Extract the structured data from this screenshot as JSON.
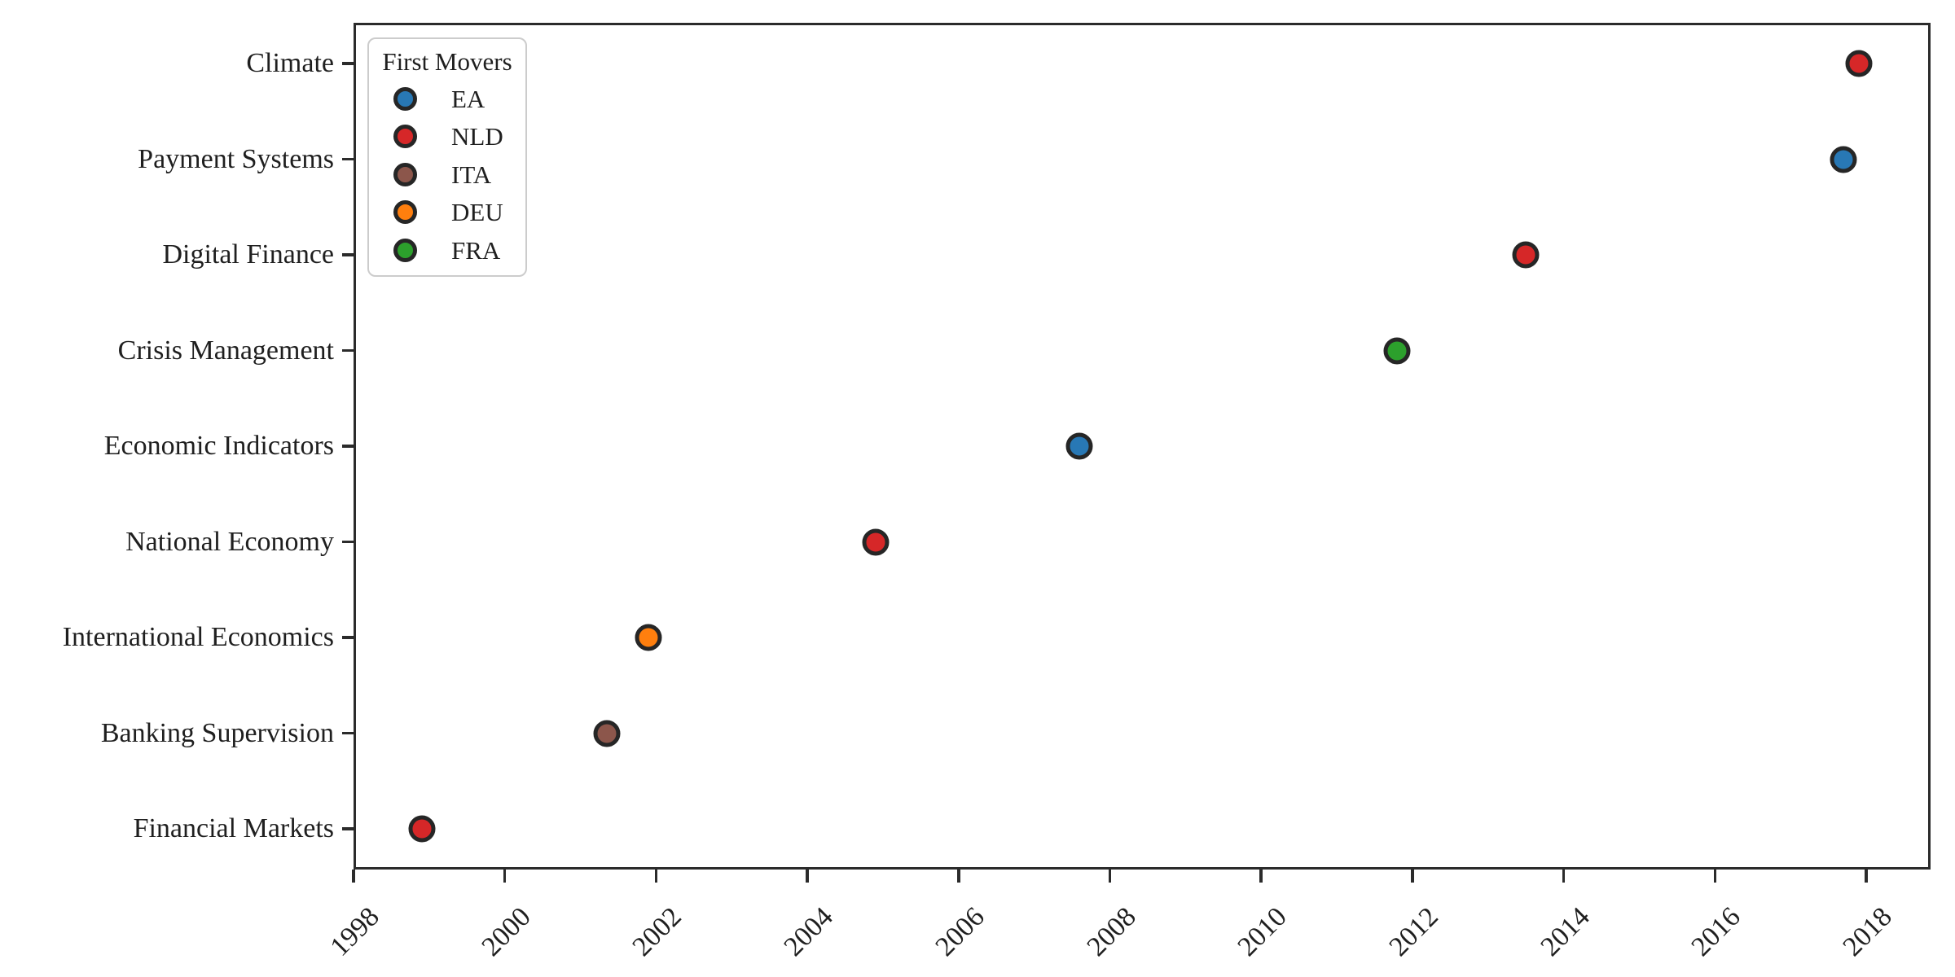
{
  "figure": {
    "background": "#ffffff",
    "text_color": "#1f1f1f",
    "axis_color": "#2b2b2b"
  },
  "chart_data": {
    "type": "scatter",
    "title": "",
    "xlabel": "",
    "ylabel": "",
    "grid": false,
    "legend_title": "First Movers",
    "legend_position": "upper-left",
    "categories": [
      "Climate",
      "Payment Systems",
      "Digital Finance",
      "Crisis Management",
      "Economic Indicators",
      "National Economy",
      "International Economics",
      "Banking Supervision",
      "Financial Markets"
    ],
    "x_ticks": [
      1998,
      2000,
      2002,
      2004,
      2006,
      2008,
      2010,
      2012,
      2014,
      2016,
      2018
    ],
    "xlim": [
      1998.0,
      2018.85
    ],
    "marker_edge_color": "#262626",
    "series": [
      {
        "name": "EA",
        "color": "#2878b5",
        "points": [
          {
            "category": "Payment Systems",
            "year": 2017.7
          },
          {
            "category": "Economic Indicators",
            "year": 2007.6
          }
        ]
      },
      {
        "name": "NLD",
        "color": "#d62728",
        "points": [
          {
            "category": "Climate",
            "year": 2017.9
          },
          {
            "category": "Digital Finance",
            "year": 2013.5
          },
          {
            "category": "National Economy",
            "year": 2004.9
          },
          {
            "category": "Financial Markets",
            "year": 1998.9
          }
        ]
      },
      {
        "name": "ITA",
        "color": "#8c564b",
        "points": [
          {
            "category": "Banking Supervision",
            "year": 2001.35
          }
        ]
      },
      {
        "name": "DEU",
        "color": "#ff7f0e",
        "points": [
          {
            "category": "International Economics",
            "year": 2001.9
          }
        ]
      },
      {
        "name": "FRA",
        "color": "#2ca02c",
        "points": [
          {
            "category": "Crisis Management",
            "year": 2011.8
          }
        ]
      }
    ]
  }
}
